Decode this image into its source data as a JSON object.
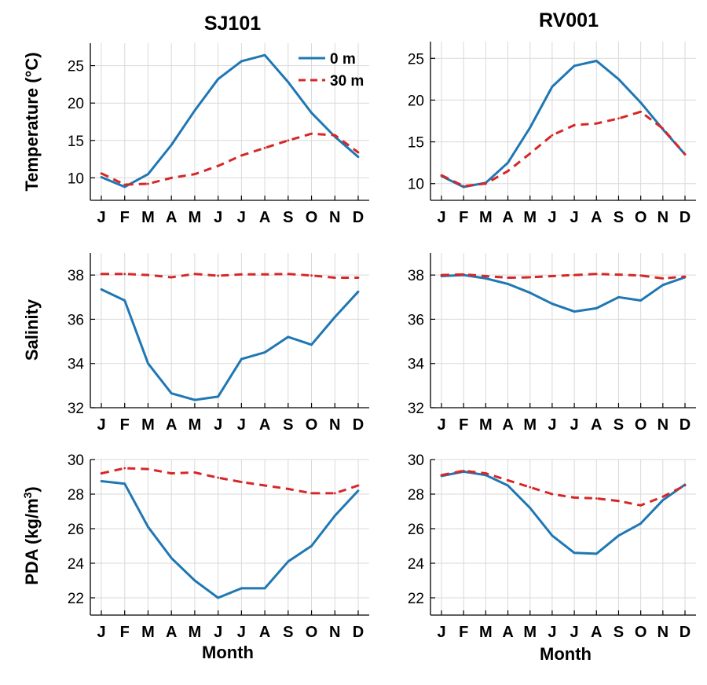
{
  "months": [
    "J",
    "F",
    "M",
    "A",
    "M",
    "J",
    "J",
    "A",
    "S",
    "O",
    "N",
    "D"
  ],
  "x_axis_label": "Month",
  "legend": {
    "surface_label": "0 m",
    "depth_label": "30 m"
  },
  "colors": {
    "surface": "#1f77b4",
    "depth": "#d62728",
    "grid": "#d9d9d9",
    "axis": "#000000"
  },
  "columns": [
    {
      "title": "SJ101"
    },
    {
      "title": "RV001"
    }
  ],
  "row_labels": [
    {
      "text": "Temperature (°C)"
    },
    {
      "text": "Salinity"
    },
    {
      "text": "PDA (kg/m",
      "sup": "3",
      "tail": ")"
    }
  ],
  "chart_data": [
    {
      "type": "line",
      "station": "SJ101",
      "variable": "Temperature",
      "row": 0,
      "col": 0,
      "title": "SJ101",
      "ylabel": "Temperature (°C)",
      "xlabel": "",
      "categories": [
        "J",
        "F",
        "M",
        "A",
        "M",
        "J",
        "J",
        "A",
        "S",
        "O",
        "N",
        "D"
      ],
      "ylim": [
        7,
        28
      ],
      "yticks": [
        10,
        15,
        20,
        25
      ],
      "legend_position": "top-right",
      "grid": true,
      "series": [
        {
          "name": "0 m",
          "style": "solid",
          "values": [
            10.1,
            8.8,
            10.5,
            14.4,
            19.0,
            23.2,
            25.6,
            26.4,
            22.8,
            18.7,
            15.5,
            12.8
          ]
        },
        {
          "name": "30 m",
          "style": "dashed",
          "values": [
            10.6,
            9.1,
            9.2,
            10.0,
            10.5,
            11.6,
            13.0,
            14.0,
            15.0,
            15.9,
            15.7,
            13.4
          ]
        }
      ]
    },
    {
      "type": "line",
      "station": "RV001",
      "variable": "Temperature",
      "row": 0,
      "col": 1,
      "title": "RV001",
      "ylabel": "",
      "xlabel": "",
      "categories": [
        "J",
        "F",
        "M",
        "A",
        "M",
        "J",
        "J",
        "A",
        "S",
        "O",
        "N",
        "D"
      ],
      "ylim": [
        8,
        27
      ],
      "yticks": [
        10,
        15,
        20,
        25
      ],
      "grid": true,
      "series": [
        {
          "name": "0 m",
          "style": "solid",
          "values": [
            10.9,
            9.6,
            10.1,
            12.5,
            16.7,
            21.6,
            24.1,
            24.7,
            22.5,
            19.7,
            16.5,
            13.5
          ]
        },
        {
          "name": "30 m",
          "style": "dashed",
          "values": [
            11.0,
            9.7,
            10.0,
            11.5,
            13.6,
            15.8,
            17.0,
            17.2,
            17.8,
            18.6,
            16.6,
            13.5
          ]
        }
      ]
    },
    {
      "type": "line",
      "station": "SJ101",
      "variable": "Salinity",
      "row": 1,
      "col": 0,
      "title": "",
      "ylabel": "Salinity",
      "xlabel": "",
      "categories": [
        "J",
        "F",
        "M",
        "A",
        "M",
        "J",
        "J",
        "A",
        "S",
        "O",
        "N",
        "D"
      ],
      "ylim": [
        32,
        39
      ],
      "yticks": [
        32,
        34,
        36,
        38
      ],
      "grid": true,
      "series": [
        {
          "name": "0 m",
          "style": "solid",
          "values": [
            37.35,
            36.85,
            34.0,
            32.65,
            32.35,
            32.5,
            34.2,
            34.5,
            35.2,
            34.85,
            36.1,
            37.25
          ]
        },
        {
          "name": "30 m",
          "style": "dashed",
          "values": [
            38.05,
            38.05,
            38.0,
            37.9,
            38.05,
            37.97,
            38.03,
            38.03,
            38.05,
            37.98,
            37.88,
            37.88
          ]
        }
      ]
    },
    {
      "type": "line",
      "station": "RV001",
      "variable": "Salinity",
      "row": 1,
      "col": 1,
      "title": "",
      "ylabel": "",
      "xlabel": "",
      "categories": [
        "J",
        "F",
        "M",
        "A",
        "M",
        "J",
        "J",
        "A",
        "S",
        "O",
        "N",
        "D"
      ],
      "ylim": [
        32,
        39
      ],
      "yticks": [
        32,
        34,
        36,
        38
      ],
      "grid": true,
      "series": [
        {
          "name": "0 m",
          "style": "solid",
          "values": [
            37.95,
            38.0,
            37.85,
            37.6,
            37.2,
            36.7,
            36.35,
            36.5,
            37.0,
            36.85,
            37.55,
            37.9
          ]
        },
        {
          "name": "30 m",
          "style": "dashed",
          "values": [
            38.0,
            38.03,
            37.95,
            37.88,
            37.9,
            37.95,
            38.0,
            38.05,
            38.02,
            37.98,
            37.85,
            37.93
          ]
        }
      ]
    },
    {
      "type": "line",
      "station": "SJ101",
      "variable": "PDA",
      "row": 2,
      "col": 0,
      "title": "",
      "ylabel": "PDA (kg/m3)",
      "xlabel": "Month",
      "categories": [
        "J",
        "F",
        "M",
        "A",
        "M",
        "J",
        "J",
        "A",
        "S",
        "O",
        "N",
        "D"
      ],
      "ylim": [
        21,
        30
      ],
      "yticks": [
        22,
        24,
        26,
        28,
        30
      ],
      "grid": true,
      "series": [
        {
          "name": "0 m",
          "style": "solid",
          "values": [
            28.75,
            28.6,
            26.1,
            24.3,
            23.0,
            22.0,
            22.55,
            22.55,
            24.1,
            25.0,
            26.75,
            28.2
          ]
        },
        {
          "name": "30 m",
          "style": "dashed",
          "values": [
            29.2,
            29.5,
            29.45,
            29.2,
            29.25,
            28.95,
            28.7,
            28.5,
            28.3,
            28.05,
            28.05,
            28.5
          ]
        }
      ]
    },
    {
      "type": "line",
      "station": "RV001",
      "variable": "PDA",
      "row": 2,
      "col": 1,
      "title": "",
      "ylabel": "",
      "xlabel": "Month",
      "categories": [
        "J",
        "F",
        "M",
        "A",
        "M",
        "J",
        "J",
        "A",
        "S",
        "O",
        "N",
        "D"
      ],
      "ylim": [
        21,
        30
      ],
      "yticks": [
        22,
        24,
        26,
        28,
        30
      ],
      "grid": true,
      "series": [
        {
          "name": "0 m",
          "style": "solid",
          "values": [
            29.05,
            29.3,
            29.1,
            28.5,
            27.2,
            25.6,
            24.6,
            24.55,
            25.6,
            26.3,
            27.65,
            28.55
          ]
        },
        {
          "name": "30 m",
          "style": "dashed",
          "values": [
            29.1,
            29.35,
            29.2,
            28.8,
            28.4,
            28.0,
            27.8,
            27.75,
            27.6,
            27.35,
            27.85,
            28.5
          ]
        }
      ]
    }
  ]
}
